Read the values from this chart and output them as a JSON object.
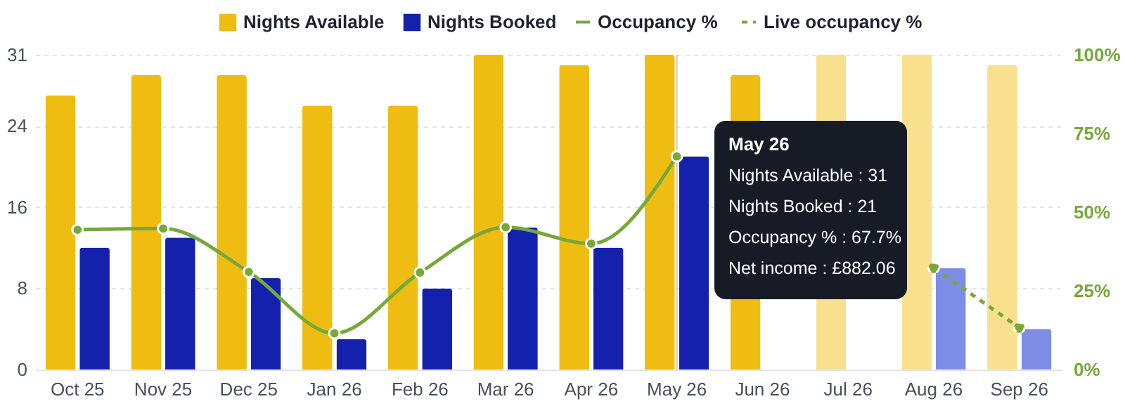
{
  "chart_data": {
    "type": "bar",
    "categories": [
      "Oct 25",
      "Nov 25",
      "Dec 25",
      "Jan 26",
      "Feb 26",
      "Mar 26",
      "Apr 26",
      "May 26",
      "Jun 26",
      "Jul 26",
      "Aug 26",
      "Sep 26"
    ],
    "series": [
      {
        "name": "Nights Available",
        "type": "bar",
        "color": "#efbc12",
        "colors": [
          "#efbc12",
          "#efbc12",
          "#efbc12",
          "#efbc12",
          "#efbc12",
          "#efbc12",
          "#efbc12",
          "#efbc12",
          "#efbc12",
          "#f8e08e",
          "#f8e08e",
          "#f8e08e"
        ],
        "values": [
          27,
          29,
          29,
          26,
          26,
          31,
          30,
          31,
          29,
          31,
          31,
          30
        ]
      },
      {
        "name": "Nights Booked",
        "type": "bar",
        "color": "#1321ad",
        "colors": [
          "#1321ad",
          "#1321ad",
          "#1321ad",
          "#1321ad",
          "#1321ad",
          "#1321ad",
          "#1321ad",
          "#1321ad",
          "#1321ad",
          "#7d8de6",
          "#7d8de6",
          "#7d8de6"
        ],
        "values": [
          12,
          13,
          9,
          3,
          8,
          14,
          12,
          21,
          null,
          null,
          10,
          4
        ]
      },
      {
        "name": "Occupancy %",
        "type": "line",
        "axis": "y2",
        "color": "#77a83a",
        "line_style": "solid",
        "values": [
          44.4,
          44.8,
          31.0,
          11.5,
          30.8,
          45.2,
          40.0,
          67.7,
          null,
          null,
          null,
          null
        ]
      },
      {
        "name": "Live occupancy %",
        "type": "line",
        "axis": "y2",
        "color": "#77a83a",
        "line_style": "dashed",
        "values": [
          null,
          null,
          null,
          null,
          null,
          null,
          null,
          null,
          null,
          null,
          32.3,
          13.3
        ]
      }
    ],
    "ylim": [
      0,
      31
    ],
    "yticks": [
      0,
      8,
      16,
      24,
      31
    ],
    "y2lim": [
      0,
      100
    ],
    "y2ticks": [
      {
        "value": 0,
        "label": "0%"
      },
      {
        "value": 25,
        "label": "25%"
      },
      {
        "value": 50,
        "label": "50%"
      },
      {
        "value": 75,
        "label": "75%"
      },
      {
        "value": 100,
        "label": "100%"
      }
    ],
    "grid": "y",
    "legend": "top right",
    "marker": "circle",
    "ref_lines": [
      {
        "axis": "x",
        "value": "May 26",
        "color": "#c8c8c8"
      }
    ],
    "annotations": [
      "May 26",
      "Nights Available : 31",
      "Nights Booked : 21",
      "Occupancy % : 67.7%",
      "Net income : £882.06"
    ]
  }
}
